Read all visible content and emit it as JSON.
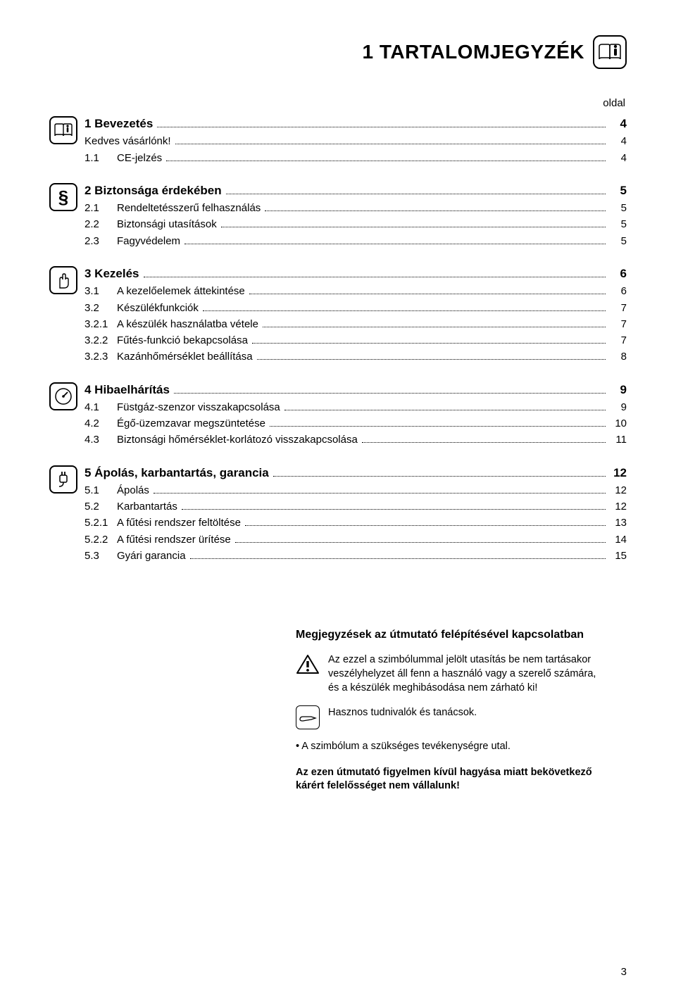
{
  "header": {
    "title": "1 TARTALOMJEGYZÉK"
  },
  "page_label": "oldal",
  "sections": [
    {
      "icon": "book",
      "heading_num": "1",
      "heading_text": "Bevezetés",
      "heading_page": "4",
      "items": [
        {
          "num": "",
          "text": "Kedves vásárlónk!",
          "page": "4"
        },
        {
          "num": "1.1",
          "text": "CE-jelzés",
          "page": "4"
        }
      ]
    },
    {
      "icon": "paragraph",
      "heading_num": "2",
      "heading_text": "Biztonsága érdekében",
      "heading_page": "5",
      "items": [
        {
          "num": "2.1",
          "text": "Rendeltetésszerű felhasználás",
          "page": "5"
        },
        {
          "num": "2.2",
          "text": "Biztonsági utasítások",
          "page": "5"
        },
        {
          "num": "2.3",
          "text": "Fagyvédelem",
          "page": "5"
        }
      ]
    },
    {
      "icon": "hand",
      "heading_num": "3",
      "heading_text": "Kezelés",
      "heading_page": "6",
      "items": [
        {
          "num": "3.1",
          "text": "A kezelőelemek áttekintése",
          "page": "6"
        },
        {
          "num": "3.2",
          "text": "Készülékfunkciók",
          "page": "7"
        },
        {
          "num": "3.2.1",
          "text": "A készülék használatba vétele",
          "page": "7"
        },
        {
          "num": "3.2.2",
          "text": "Fűtés-funkció bekapcsolása",
          "page": "7"
        },
        {
          "num": "3.2.3",
          "text": "Kazánhőmérséklet beállítása",
          "page": "8"
        }
      ]
    },
    {
      "icon": "gauge",
      "heading_num": "4",
      "heading_text": "Hibaelhárítás",
      "heading_page": "9",
      "items": [
        {
          "num": "4.1",
          "text": "Füstgáz-szenzor visszakapcsolása",
          "page": "9"
        },
        {
          "num": "4.2",
          "text": "Égő-üzemzavar megszüntetése",
          "page": "10"
        },
        {
          "num": "4.3",
          "text": "Biztonsági hőmérséklet-korlátozó visszakapcsolása",
          "page": "11"
        }
      ]
    },
    {
      "icon": "plug",
      "heading_num": "5",
      "heading_text": "Ápolás, karbantartás, garancia",
      "heading_page": "12",
      "items": [
        {
          "num": "5.1",
          "text": "Ápolás",
          "page": "12"
        },
        {
          "num": "5.2",
          "text": "Karbantartás",
          "page": "12"
        },
        {
          "num": "5.2.1",
          "text": "A fűtési rendszer feltöltése",
          "page": "13"
        },
        {
          "num": "5.2.2",
          "text": "A fűtési rendszer ürítése",
          "page": "14"
        },
        {
          "num": "5.3",
          "text": "Gyári garancia",
          "page": "15"
        }
      ]
    }
  ],
  "notes": {
    "title": "Megjegyzések az útmutató felépítésével kapcsolatban",
    "warning": "Az ezzel a szimbólummal jelölt utasítás be nem tartásakor veszélyhelyzet áll fenn a használó vagy a szerelő számára, és a készülék meghibásodása nem zárható ki!",
    "tip": "Hasznos tudnivalók és tanácsok.",
    "bullet": "•  A szimbólum a szükséges tevékenységre utal.",
    "disclaimer": "Az ezen útmutató figyelmen kívül hagyása miatt bekövetkező kárért felelősséget nem vállalunk!"
  },
  "page_number": "3"
}
